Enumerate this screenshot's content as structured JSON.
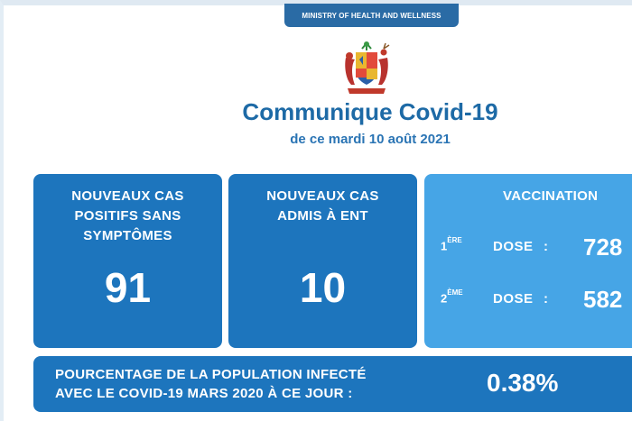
{
  "header": {
    "ministry": "MINISTRY OF HEALTH AND WELLNESS",
    "title": "Communique Covid-19",
    "date": "de ce mardi 10 août 2021"
  },
  "cards": [
    {
      "heading_line1": "NOUVEAUX CAS",
      "heading_line2": "POSITIFS SANS",
      "heading_line3": "SYMPTÔMES",
      "value": "91"
    },
    {
      "heading_line1": "NOUVEAUX CAS",
      "heading_line2": "ADMIS À ENT",
      "value": "10"
    }
  ],
  "vaccination": {
    "heading": "VACCINATION",
    "doses": [
      {
        "ordinal": "1",
        "suffix": "ÈRE",
        "label": "DOSE",
        "colon": ":",
        "value": "728"
      },
      {
        "ordinal": "2",
        "suffix": "ÈME",
        "label": "DOSE",
        "colon": ":",
        "value": "582"
      }
    ]
  },
  "infected": {
    "line1": "POURCENTAGE DE LA POPULATION INFECTÉ",
    "line2": "AVEC LE COVID-19 MARS 2020 À CE JOUR :",
    "value": "0.38%"
  },
  "colors": {
    "primary_blue": "#1d75bd",
    "light_blue": "#46a5e6",
    "title_blue": "#1d6aa6"
  }
}
